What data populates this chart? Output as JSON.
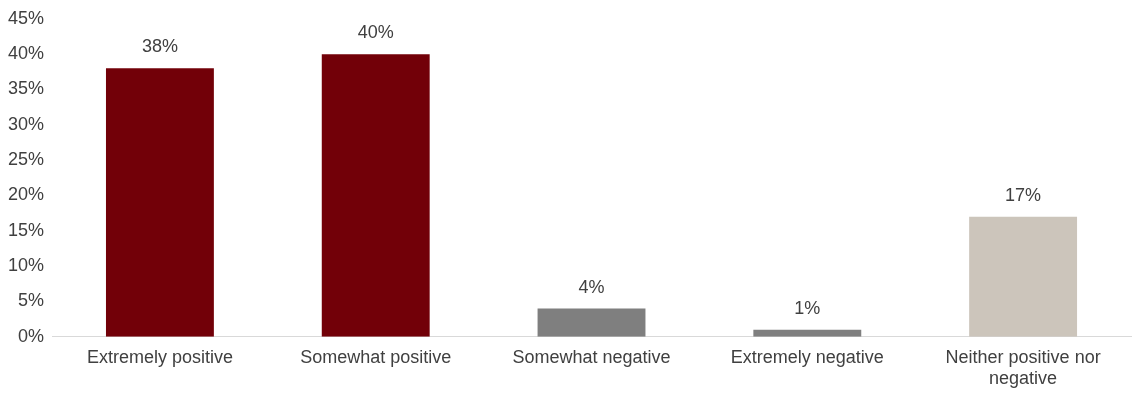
{
  "chart_data": {
    "type": "bar",
    "categories": [
      "Extremely positive",
      "Somewhat positive",
      "Somewhat negative",
      "Extremely negative",
      "Neither positive nor negative"
    ],
    "values": [
      38,
      40,
      4,
      1,
      17
    ],
    "colors": [
      "#720008",
      "#720008",
      "#7f7f7f",
      "#7f7f7f",
      "#ccc5bb"
    ],
    "value_labels": [
      "38%",
      "40%",
      "4%",
      "1%",
      "17%"
    ],
    "ylim": [
      0,
      45
    ],
    "yticks": [
      {
        "value": 0,
        "label": "0%"
      },
      {
        "value": 5,
        "label": "5%"
      },
      {
        "value": 10,
        "label": "10%"
      },
      {
        "value": 15,
        "label": "15%"
      },
      {
        "value": 20,
        "label": "20%"
      },
      {
        "value": 25,
        "label": "25%"
      },
      {
        "value": 30,
        "label": "30%"
      },
      {
        "value": 35,
        "label": "35%"
      },
      {
        "value": 40,
        "label": "40%"
      },
      {
        "value": 45,
        "label": "45%"
      }
    ],
    "grid": false,
    "legend": false
  }
}
